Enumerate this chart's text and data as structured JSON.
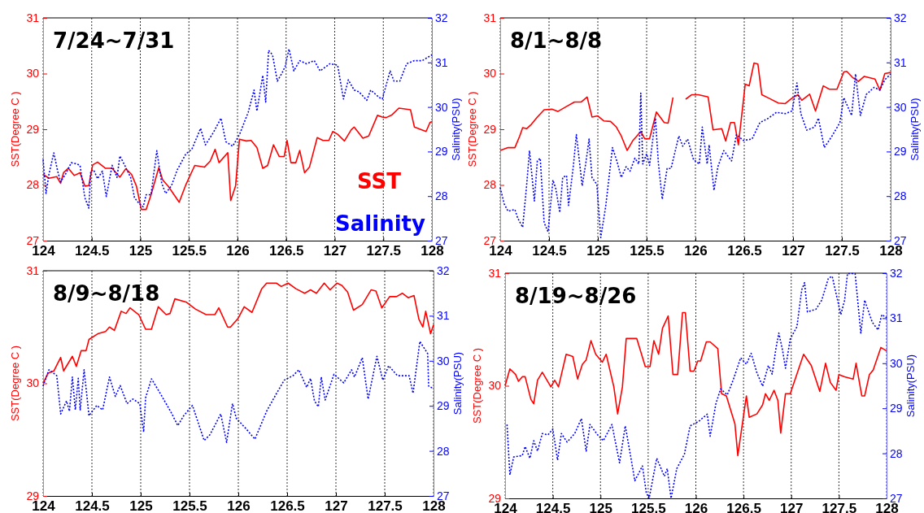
{
  "chart_data": [
    {
      "type": "line",
      "title": "7/24~7/31",
      "ylabel": "SST(Degree C )",
      "y2label": "Salinity(PSU)",
      "xlim": [
        124,
        128
      ],
      "xticks": [
        124,
        124.5,
        125,
        125.5,
        126,
        126.5,
        127,
        127.5,
        128
      ],
      "ylim": [
        27,
        31
      ],
      "yticks": [
        27,
        28,
        29,
        30,
        31
      ],
      "y2lim": [
        27,
        32
      ],
      "y2ticks": [
        27,
        28,
        29,
        30,
        31,
        32
      ],
      "grid": "x",
      "legend": "bottom right",
      "series": [
        {
          "name": "SST",
          "color": "#ff0000",
          "line_style": "solid",
          "x": [
            124.0,
            124.06,
            124.14,
            124.18,
            124.21,
            124.26,
            124.32,
            124.38,
            124.43,
            124.47,
            124.51,
            124.56,
            124.64,
            124.71,
            124.79,
            124.85,
            124.91,
            124.96,
            125.01,
            125.06,
            125.11,
            125.19,
            125.23,
            125.29,
            125.4,
            125.47,
            125.56,
            125.66,
            125.72,
            125.77,
            125.81,
            125.9,
            125.93,
            125.98,
            126.02,
            126.09,
            126.14,
            126.2,
            126.26,
            126.31,
            126.37,
            126.43,
            126.48,
            126.51,
            126.55,
            126.6,
            126.64,
            126.69,
            126.74,
            126.82,
            126.88,
            126.94,
            126.98,
            127.03,
            127.1,
            127.17,
            127.2,
            127.29,
            127.35,
            127.44,
            127.49,
            127.53,
            127.59,
            127.66,
            127.78,
            127.82,
            127.88,
            127.94,
            127.98,
            128.0
          ],
          "values": [
            28.19,
            28.12,
            28.15,
            28.03,
            28.22,
            28.3,
            28.17,
            28.22,
            27.98,
            27.99,
            28.36,
            28.41,
            28.3,
            28.3,
            28.14,
            28.29,
            28.19,
            27.98,
            27.56,
            27.56,
            27.82,
            28.31,
            28.09,
            27.97,
            27.69,
            28.01,
            28.35,
            28.32,
            28.43,
            28.64,
            28.4,
            28.58,
            27.72,
            27.98,
            28.82,
            28.79,
            28.8,
            28.67,
            28.3,
            28.35,
            28.72,
            28.51,
            28.51,
            28.8,
            28.4,
            28.4,
            28.62,
            28.22,
            28.32,
            28.85,
            28.8,
            28.8,
            28.96,
            28.91,
            28.79,
            28.99,
            29.04,
            28.84,
            28.88,
            29.25,
            29.22,
            29.21,
            29.26,
            29.38,
            29.35,
            29.04,
            29.0,
            28.96,
            29.12,
            29.14
          ]
        },
        {
          "name": "Salinity",
          "color": "#0000ff",
          "line_style": "dotted",
          "axis": "y2",
          "x": [
            124.0,
            124.03,
            124.06,
            124.11,
            124.15,
            124.18,
            124.23,
            124.29,
            124.35,
            124.38,
            124.43,
            124.47,
            124.49,
            124.52,
            124.56,
            124.61,
            124.65,
            124.71,
            124.76,
            124.79,
            124.84,
            124.9,
            124.94,
            124.99,
            125.03,
            125.06,
            125.11,
            125.17,
            125.22,
            125.26,
            125.32,
            125.38,
            125.47,
            125.53,
            125.62,
            125.67,
            125.75,
            125.83,
            125.88,
            125.95,
            126.02,
            126.11,
            126.17,
            126.2,
            126.26,
            126.29,
            126.32,
            126.36,
            126.41,
            126.46,
            126.49,
            126.53,
            126.58,
            126.64,
            126.71,
            126.79,
            126.85,
            126.95,
            127.03,
            127.09,
            127.14,
            127.2,
            127.25,
            127.33,
            127.37,
            127.46,
            127.49,
            127.57,
            127.61,
            127.67,
            127.74,
            127.82,
            127.9,
            128.0
          ],
          "values": [
            28.82,
            28.06,
            28.49,
            28.97,
            28.56,
            28.32,
            28.49,
            28.75,
            28.72,
            28.69,
            27.96,
            27.73,
            28.56,
            28.59,
            28.39,
            28.56,
            27.99,
            28.69,
            28.42,
            28.9,
            28.69,
            28.42,
            27.96,
            27.83,
            27.76,
            28.03,
            28.03,
            29.02,
            28.29,
            28.06,
            28.23,
            28.59,
            28.95,
            29.05,
            29.52,
            29.15,
            29.42,
            29.75,
            29.22,
            29.12,
            29.38,
            29.88,
            30.38,
            29.91,
            30.71,
            30.11,
            31.27,
            31.17,
            30.58,
            30.77,
            30.91,
            31.3,
            30.81,
            31.04,
            30.97,
            31.04,
            30.81,
            30.97,
            30.94,
            30.18,
            30.61,
            30.38,
            30.34,
            30.15,
            30.38,
            30.21,
            30.18,
            30.81,
            30.58,
            30.58,
            30.97,
            31.04,
            31.04,
            31.17
          ]
        }
      ]
    },
    {
      "type": "line",
      "title": "8/1~8/8",
      "ylabel": "SST(Degree C )",
      "y2label": "Salinity(PSU)",
      "xlim": [
        124,
        128
      ],
      "xticks": [
        124,
        124.5,
        125,
        125.5,
        126,
        126.5,
        127,
        127.5,
        128
      ],
      "ylim": [
        27,
        31
      ],
      "yticks": [
        27,
        28,
        29,
        30,
        31
      ],
      "y2lim": [
        27,
        32
      ],
      "y2ticks": [
        27,
        28,
        29,
        30,
        31,
        32
      ],
      "grid": "x",
      "series": [
        {
          "color": "#ff0000",
          "line_style": "solid",
          "x": [
            124.0,
            124.08,
            124.15,
            124.2,
            124.23,
            124.27,
            124.32,
            124.38,
            124.45,
            124.53,
            124.59,
            124.68,
            124.76,
            124.83,
            124.89,
            124.94,
            125.0,
            125.06,
            125.13,
            125.19,
            125.24,
            125.3,
            125.36,
            125.44,
            125.48,
            125.53,
            125.6,
            125.68,
            125.72,
            125.77,
            125.84,
            125.9,
            125.96,
            126.03,
            126.13,
            126.18,
            126.27,
            126.31,
            126.36,
            126.4,
            126.44,
            126.51,
            126.55,
            126.6,
            126.64,
            126.68,
            126.75,
            126.85,
            126.92,
            126.99,
            127.05,
            127.09,
            127.17,
            127.23,
            127.31,
            127.37,
            127.45,
            127.52,
            127.55,
            127.61,
            127.67,
            127.73,
            127.84,
            127.89,
            127.94,
            128.0
          ],
          "values": [
            28.62,
            28.67,
            28.67,
            28.88,
            29.03,
            29.01,
            29.09,
            29.22,
            29.35,
            29.36,
            29.32,
            29.41,
            29.49,
            29.49,
            29.58,
            29.22,
            29.24,
            29.15,
            29.14,
            29.04,
            28.88,
            28.62,
            28.8,
            28.96,
            28.83,
            28.83,
            29.31,
            29.12,
            29.11,
            29.57,
            null,
            29.54,
            29.62,
            29.62,
            29.58,
            28.99,
            29.01,
            28.79,
            29.12,
            29.12,
            28.72,
            29.81,
            29.78,
            30.19,
            30.17,
            29.62,
            29.56,
            29.47,
            29.46,
            29.56,
            29.62,
            29.52,
            29.63,
            29.33,
            29.78,
            29.72,
            29.72,
            30.03,
            30.04,
            29.93,
            29.86,
            29.95,
            29.9,
            29.7,
            30.0,
            30.02
          ]
        },
        {
          "color": "#0000ff",
          "line_style": "dotted",
          "axis": "y2",
          "x": [
            124.0,
            124.04,
            124.08,
            124.15,
            124.18,
            124.23,
            124.27,
            124.3,
            124.35,
            124.38,
            124.41,
            124.45,
            124.49,
            124.54,
            124.57,
            124.61,
            124.64,
            124.68,
            124.7,
            124.75,
            124.78,
            124.84,
            124.88,
            124.91,
            124.94,
            124.99,
            125.03,
            125.08,
            125.15,
            125.2,
            125.24,
            125.29,
            125.33,
            125.38,
            125.42,
            125.44,
            125.46,
            125.5,
            125.53,
            125.59,
            125.62,
            125.66,
            125.71,
            125.75,
            125.83,
            125.87,
            125.92,
            125.98,
            126.04,
            126.07,
            126.12,
            126.14,
            126.19,
            126.23,
            126.29,
            126.37,
            126.42,
            126.49,
            126.58,
            126.66,
            126.75,
            126.83,
            126.92,
            126.99,
            127.04,
            127.08,
            127.14,
            127.22,
            127.26,
            127.32,
            127.4,
            127.48,
            127.52,
            127.6,
            127.64,
            127.69,
            127.75,
            127.83,
            127.89,
            127.94,
            128.0
          ],
          "values": [
            28.19,
            27.83,
            27.66,
            27.7,
            27.5,
            27.3,
            28.23,
            29.02,
            27.89,
            28.79,
            28.85,
            27.4,
            27.2,
            28.36,
            28.16,
            27.63,
            28.42,
            28.46,
            27.79,
            28.69,
            29.38,
            28.23,
            28.79,
            29.28,
            28.42,
            28.26,
            27.07,
            27.76,
            29.09,
            28.75,
            28.42,
            28.66,
            28.56,
            28.85,
            28.72,
            30.31,
            28.72,
            28.95,
            28.69,
            29.75,
            28.75,
            27.93,
            28.62,
            28.62,
            29.35,
            29.12,
            29.28,
            28.82,
            28.72,
            29.55,
            28.72,
            29.15,
            28.13,
            28.66,
            29.02,
            28.79,
            29.38,
            29.25,
            29.28,
            29.65,
            29.75,
            29.88,
            29.85,
            29.91,
            30.54,
            29.85,
            29.48,
            29.55,
            29.75,
            29.09,
            29.35,
            29.65,
            30.21,
            29.81,
            30.74,
            29.81,
            30.28,
            30.44,
            30.38,
            30.61,
            30.74
          ]
        }
      ]
    },
    {
      "type": "line",
      "title": "8/9~8/18",
      "ylabel": "SST(Degree C )",
      "y2label": "Salinity(PSU)",
      "xlim": [
        124,
        128
      ],
      "xticks": [
        124,
        124.5,
        125,
        125.5,
        126,
        126.5,
        127,
        127.5,
        128
      ],
      "ylim": [
        29,
        31
      ],
      "yticks": [
        29,
        30,
        31
      ],
      "y2lim": [
        27,
        32
      ],
      "y2ticks": [
        27,
        28,
        29,
        30,
        31,
        32
      ],
      "grid": "x",
      "series": [
        {
          "color": "#ff0000",
          "line_style": "solid",
          "x": [
            124.0,
            124.05,
            124.11,
            124.18,
            124.21,
            124.3,
            124.34,
            124.39,
            124.44,
            124.47,
            124.56,
            124.64,
            124.68,
            124.73,
            124.8,
            124.85,
            124.89,
            124.98,
            125.05,
            125.11,
            125.18,
            125.26,
            125.3,
            125.35,
            125.47,
            125.56,
            125.67,
            125.76,
            125.8,
            125.89,
            125.92,
            126.0,
            126.06,
            126.14,
            126.24,
            126.29,
            126.39,
            126.44,
            126.51,
            126.59,
            126.68,
            126.74,
            126.8,
            126.88,
            126.94,
            127.01,
            127.06,
            127.12,
            127.18,
            127.27,
            127.36,
            127.41,
            127.47,
            127.55,
            127.62,
            127.68,
            127.74,
            127.8,
            127.85,
            127.89,
            127.92,
            127.97,
            128.0
          ],
          "values": [
            30.0,
            30.09,
            30.11,
            30.23,
            30.11,
            30.24,
            30.15,
            30.29,
            30.29,
            30.39,
            30.44,
            30.46,
            30.5,
            30.47,
            30.64,
            30.62,
            30.67,
            30.61,
            30.48,
            30.48,
            30.68,
            30.61,
            30.62,
            30.75,
            30.72,
            30.66,
            30.61,
            30.61,
            30.67,
            30.5,
            30.5,
            30.58,
            30.68,
            30.63,
            30.84,
            30.89,
            30.89,
            30.86,
            30.89,
            30.84,
            30.8,
            30.83,
            30.8,
            30.89,
            30.83,
            30.89,
            30.87,
            30.81,
            30.65,
            30.7,
            30.83,
            30.82,
            30.67,
            30.77,
            30.77,
            30.8,
            30.76,
            30.78,
            30.57,
            30.5,
            30.64,
            30.44,
            30.52
          ]
        },
        {
          "color": "#0000ff",
          "line_style": "dotted",
          "axis": "y2",
          "x": [
            124.0,
            124.06,
            124.14,
            124.18,
            124.24,
            124.27,
            124.3,
            124.33,
            124.36,
            124.38,
            124.42,
            124.47,
            124.55,
            124.61,
            124.68,
            124.74,
            124.79,
            124.86,
            124.92,
            124.99,
            125.03,
            125.05,
            125.11,
            125.21,
            125.32,
            125.38,
            125.44,
            125.53,
            125.65,
            125.71,
            125.82,
            125.88,
            125.94,
            125.98,
            126.08,
            126.17,
            126.29,
            126.39,
            126.47,
            126.56,
            126.62,
            126.7,
            126.74,
            126.78,
            126.82,
            126.85,
            126.89,
            126.98,
            127.08,
            127.16,
            127.19,
            127.27,
            127.33,
            127.42,
            127.48,
            127.54,
            127.63,
            127.75,
            127.79,
            127.86,
            127.94,
            127.95,
            128.0
          ],
          "values": [
            29.44,
            29.8,
            29.67,
            28.82,
            29.11,
            28.88,
            29.64,
            28.91,
            29.61,
            28.91,
            29.8,
            28.78,
            29.01,
            28.91,
            29.64,
            29.21,
            29.45,
            29.05,
            29.15,
            29.05,
            28.42,
            29.18,
            29.6,
            29.24,
            28.82,
            28.56,
            28.78,
            29.01,
            28.23,
            28.36,
            28.82,
            28.19,
            29.05,
            28.72,
            28.49,
            28.26,
            28.88,
            29.27,
            29.57,
            29.67,
            29.8,
            29.41,
            29.61,
            29.11,
            28.98,
            29.64,
            29.13,
            29.7,
            29.51,
            29.8,
            29.64,
            30.07,
            29.15,
            30.1,
            29.57,
            29.89,
            29.67,
            29.67,
            29.28,
            30.43,
            30.16,
            29.44,
            29.38
          ]
        }
      ]
    },
    {
      "type": "line",
      "title": "8/19~8/26",
      "ylabel": "SST(Degree C )",
      "y2label": "Salinity(PSU)",
      "xlim": [
        124,
        128
      ],
      "xticks": [
        124,
        124.5,
        125,
        125.5,
        126,
        126.5,
        127,
        127.5,
        128
      ],
      "ylim": [
        29,
        31
      ],
      "yticks": [
        29,
        30,
        31
      ],
      "y2lim": [
        27,
        32
      ],
      "y2ticks": [
        27,
        28,
        29,
        30,
        31,
        32
      ],
      "grid": "x",
      "series": [
        {
          "color": "#ff0000",
          "line_style": "solid",
          "x": [
            124.0,
            124.05,
            124.11,
            124.14,
            124.18,
            124.21,
            124.27,
            124.3,
            124.34,
            124.39,
            124.48,
            124.52,
            124.56,
            124.64,
            124.71,
            124.76,
            124.81,
            124.85,
            124.9,
            124.95,
            125.02,
            125.06,
            125.14,
            125.18,
            125.23,
            125.27,
            125.38,
            125.47,
            125.52,
            125.56,
            125.61,
            125.65,
            125.71,
            125.76,
            125.81,
            125.86,
            125.89,
            125.94,
            125.98,
            126.02,
            126.05,
            126.11,
            126.15,
            126.23,
            126.27,
            126.32,
            126.41,
            126.44,
            126.53,
            126.56,
            126.64,
            126.7,
            126.73,
            126.77,
            126.82,
            126.86,
            126.89,
            126.94,
            126.99,
            127.13,
            127.21,
            127.3,
            127.36,
            127.41,
            127.47,
            127.5,
            127.56,
            127.65,
            127.68,
            127.74,
            127.77,
            127.82,
            127.86,
            127.94,
            128.0
          ],
          "values": [
            30.0,
            30.15,
            30.1,
            30.04,
            30.08,
            30.08,
            29.88,
            29.84,
            30.05,
            30.12,
            29.99,
            30.05,
            29.99,
            30.28,
            30.26,
            30.06,
            30.19,
            30.23,
            30.4,
            30.28,
            30.21,
            30.28,
            29.99,
            29.75,
            29.99,
            30.42,
            30.42,
            30.17,
            30.17,
            30.4,
            30.28,
            30.51,
            30.62,
            30.1,
            30.1,
            30.65,
            30.65,
            30.13,
            30.13,
            30.22,
            30.22,
            30.39,
            30.39,
            30.33,
            29.93,
            29.91,
            29.66,
            29.38,
            29.91,
            29.72,
            29.75,
            29.83,
            29.93,
            29.87,
            29.96,
            29.87,
            29.58,
            29.93,
            29.93,
            30.28,
            30.18,
            29.95,
            30.2,
            30.03,
            29.96,
            30.1,
            30.08,
            30.06,
            30.2,
            29.91,
            29.91,
            30.1,
            30.14,
            30.34,
            30.31
          ]
        },
        {
          "color": "#0000ff",
          "line_style": "dotted",
          "axis": "y2",
          "x": [
            124.02,
            124.05,
            124.09,
            124.18,
            124.21,
            124.26,
            124.3,
            124.34,
            124.39,
            124.45,
            124.5,
            124.55,
            124.59,
            124.65,
            124.73,
            124.8,
            124.85,
            124.89,
            124.97,
            125.03,
            125.12,
            125.2,
            125.26,
            125.32,
            125.36,
            125.44,
            125.48,
            125.51,
            125.59,
            125.67,
            125.7,
            125.74,
            125.8,
            125.88,
            125.94,
            126.03,
            126.12,
            126.15,
            126.21,
            126.26,
            126.33,
            126.39,
            126.47,
            126.53,
            126.58,
            126.64,
            126.7,
            126.76,
            126.8,
            126.84,
            126.87,
            126.91,
            126.94,
            126.99,
            127.06,
            127.11,
            127.14,
            127.17,
            127.26,
            127.32,
            127.39,
            127.43,
            127.52,
            127.56,
            127.59,
            127.67,
            127.73,
            127.77,
            127.85,
            127.91,
            127.95,
            128.0
          ],
          "values": [
            28.64,
            27.52,
            27.92,
            27.95,
            28.15,
            27.89,
            28.28,
            28.05,
            28.44,
            28.41,
            28.54,
            27.85,
            28.44,
            28.25,
            28.44,
            28.77,
            28.05,
            28.64,
            28.41,
            28.28,
            28.64,
            27.79,
            28.61,
            27.89,
            27.39,
            27.72,
            27.13,
            27.0,
            27.89,
            27.49,
            27.66,
            27.0,
            27.66,
            27.98,
            28.61,
            28.71,
            28.87,
            28.38,
            29.1,
            29.43,
            29.3,
            29.62,
            30.12,
            29.98,
            30.22,
            29.79,
            29.49,
            29.95,
            29.76,
            30.33,
            30.67,
            30.28,
            29.89,
            30.54,
            30.81,
            31.63,
            31.79,
            31.14,
            31.2,
            31.4,
            31.89,
            31.93,
            31.08,
            31.4,
            31.99,
            31.99,
            30.67,
            31.4,
            30.91,
            30.74,
            31.08,
            31.01
          ]
        }
      ]
    }
  ]
}
